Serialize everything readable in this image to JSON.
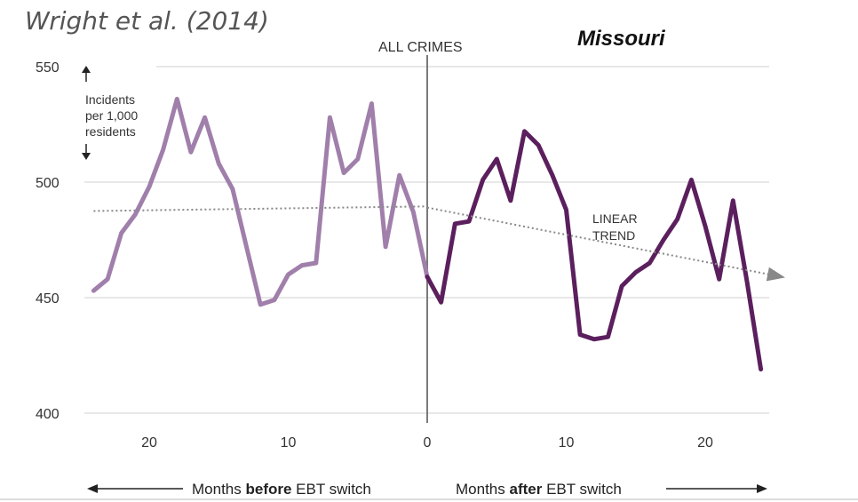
{
  "citation": "Wright et al. (2014)",
  "state": "Missouri",
  "chart_data": {
    "type": "line",
    "title": "ALL CRIMES",
    "ylabel": [
      "Incidents",
      "per 1,000",
      "residents"
    ],
    "ylim": [
      400,
      550
    ],
    "yticks": [
      400,
      450,
      500,
      550
    ],
    "xticks": [
      {
        "value": -20,
        "label": "20"
      },
      {
        "value": -10,
        "label": "10"
      },
      {
        "value": 0,
        "label": "0"
      },
      {
        "value": 10,
        "label": "10"
      },
      {
        "value": 20,
        "label": "20"
      }
    ],
    "xlim": [
      -24,
      24
    ],
    "xlabel_before": {
      "prefix": "Months ",
      "emphasis": "before",
      "suffix": " EBT switch"
    },
    "xlabel_after": {
      "prefix": "Months ",
      "emphasis": "after",
      "suffix": " EBT switch"
    },
    "event_label": "ALL CRIMES",
    "trend_label": [
      "LINEAR",
      "TREND"
    ],
    "series": [
      {
        "name": "before",
        "color": "#a07fab",
        "x": [
          -24,
          -23,
          -22,
          -21,
          -20,
          -19,
          -18,
          -17,
          -16,
          -15,
          -14,
          -13,
          -12,
          -11,
          -10,
          -9,
          -8,
          -7,
          -6,
          -5,
          -4,
          -3,
          -2,
          -1,
          0
        ],
        "y": [
          453,
          458,
          478,
          486,
          498,
          514,
          536,
          513,
          528,
          508,
          497,
          472,
          447,
          449,
          460,
          464,
          465,
          528,
          504,
          510,
          534,
          472,
          503,
          487,
          459
        ]
      },
      {
        "name": "after",
        "color": "#5b1f5e",
        "x": [
          0,
          1,
          2,
          3,
          4,
          5,
          6,
          7,
          8,
          9,
          10,
          11,
          12,
          13,
          14,
          15,
          16,
          17,
          18,
          19,
          20,
          21,
          22,
          23,
          24
        ],
        "y": [
          459,
          448,
          482,
          483,
          501,
          510,
          492,
          522,
          516,
          503,
          488,
          434,
          432,
          433,
          455,
          461,
          465,
          475,
          484,
          501,
          481,
          458,
          492,
          457,
          419
        ]
      },
      {
        "name": "linear-trend-before",
        "color": "#888888",
        "style": "dotted",
        "x": [
          -24,
          0
        ],
        "y": [
          487.5,
          489.5
        ]
      },
      {
        "name": "linear-trend-after",
        "color": "#888888",
        "style": "dotted",
        "x": [
          0,
          25.5
        ],
        "y": [
          489,
          459
        ]
      }
    ]
  },
  "colors": {
    "grid": "#d9d9d9",
    "divider": "#7a7a7a",
    "before": "#a07fab",
    "after": "#5b1f5e",
    "trend": "#888888"
  }
}
